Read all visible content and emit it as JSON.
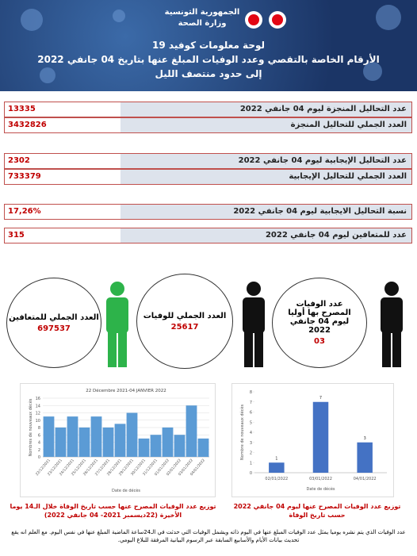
{
  "header": {
    "country": "الجمهورية التونسية",
    "ministry": "وزارة الصحة",
    "title": "لوحة معلومات كوفيد 19",
    "subtitle": "الأرقام الخاصة بالتقصي وعدد الوفيات المبلغ عنها بتاريخ  04 جانفي 2022",
    "note": "إلى حدود منتصف الليل"
  },
  "table": {
    "rows": [
      [
        "عدد التحاليل المنجزة ليوم 04  جانفي 2022",
        "13335"
      ],
      [
        "العدد الجملي للتحاليل المنجزة",
        "3432826"
      ],
      [
        "عدد التحاليل الإيجابية ليوم  04 جانفي 2022",
        "2302"
      ],
      [
        "العدد الجملي للتحاليل الإيجابية",
        "733379"
      ],
      [
        "نسبة التحاليل الايجابية ليوم 04  جانفي 2022",
        "17,26%"
      ],
      [
        "عدد للمتعافين ليوم 04 جانفي 2022",
        "315"
      ]
    ]
  },
  "circles": [
    {
      "label": "العدد الجملي للمتعافين",
      "value": "697537"
    },
    {
      "label": "العدد الجملي للوفيات",
      "value": "25617"
    },
    {
      "label": "عدد الوفيات المصرح بها أوليا ليوم 04  جانفي 2022",
      "value": "03"
    }
  ],
  "chart_data": [
    {
      "type": "bar",
      "title": "22 Décembre 2021-04 JANVIER 2022",
      "categories": [
        "22/12/2021",
        "23/12/2021",
        "24/12/2021",
        "25/12/2021",
        "26/12/2021",
        "27/12/2021",
        "28/12/2021",
        "29/12/2021",
        "30/12/2021",
        "31/12/2021",
        "01/01/2022",
        "02/01/2022",
        "03/01/2022",
        "04/01/2022"
      ],
      "values": [
        11,
        8,
        11,
        8,
        11,
        8,
        9,
        12,
        5,
        6,
        8,
        6,
        14,
        5
      ],
      "color": "#5b9bd5",
      "ylim": [
        0,
        16
      ],
      "yticks": [
        0,
        2,
        4,
        6,
        8,
        10,
        12,
        14,
        16
      ],
      "y_label": "Nombres de nouveaux décès",
      "x_label": "Date de décès",
      "grid": true,
      "data_labels": false,
      "caption": "توزيع عدد الوفيات المصرح عنها حسب تاريخ الوفاة خلال الـ14 يوما الأخيرة (22ديسمبر 2021- 04 جانفي 2022)"
    },
    {
      "type": "bar",
      "categories": [
        "02/01/2022",
        "03/01/2022",
        "04/01/2022"
      ],
      "values": [
        1,
        7,
        3
      ],
      "color": "#4472c4",
      "ylim": [
        0,
        8
      ],
      "yticks": [
        0,
        1,
        2,
        3,
        4,
        5,
        6,
        7,
        8
      ],
      "y_label": "Nombre de nouveaux décès",
      "x_label": "Date de décès",
      "grid": false,
      "data_labels": true,
      "caption": "توزيع عدد الوفيات المصرح عنها ليوم 04  جانفي 2022 حسب تاريخ الوفاة"
    }
  ],
  "footer": "عدد الوفيات الذي يتم نشره يوميا يمثل عدد الوفيات المبلغ عنها في اليوم ذاته ويشمل الوفيات التي حدثت في الـ24ساعة الماضية المبلغ عنها في نفس اليوم. مع العلم انه يقع تحديث بيانات الأيام والأسابيع السابقة عبر الرسوم البيانية المرفقة للبلاغ اليومي."
}
